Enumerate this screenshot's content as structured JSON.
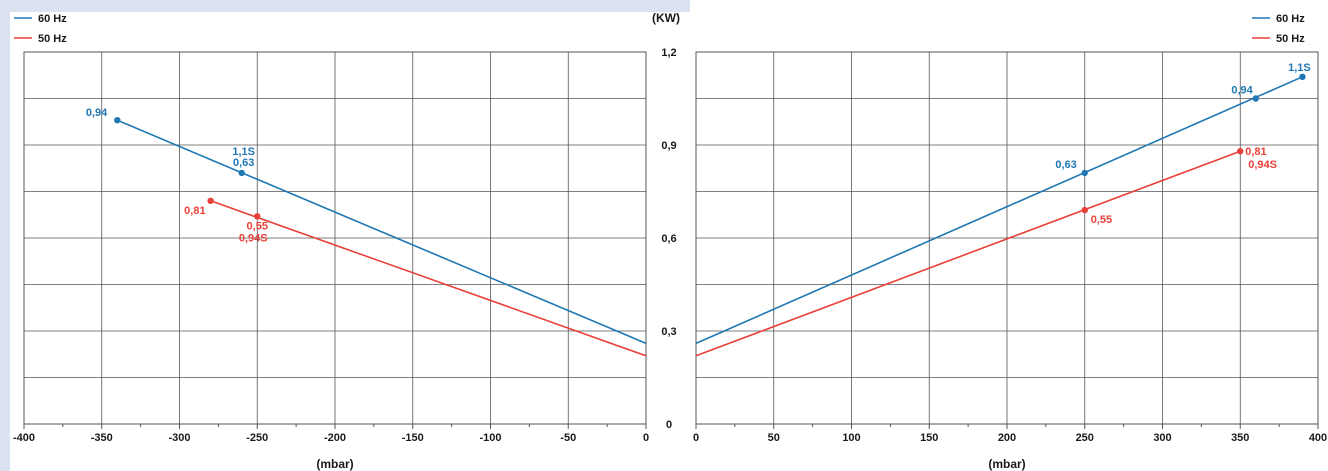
{
  "colors": {
    "series_60hz": "#1f77b4",
    "series_50hz": "#e8413a",
    "grid": "#555555",
    "background": "#dbe3f1"
  },
  "chart_data": [
    {
      "type": "line",
      "title": "",
      "xlabel": "(mbar)",
      "ylabel": "",
      "xlim": [
        -400,
        0
      ],
      "ylim": [
        0,
        1.2
      ],
      "x_ticks": [
        -400,
        -350,
        -300,
        -250,
        -200,
        -150,
        -100,
        -50,
        0
      ],
      "x_tick_labels": [
        "-400",
        "-350",
        "-300",
        "-250",
        "-200",
        "-150",
        "-100",
        "-50",
        "0"
      ],
      "grid": true,
      "legend": {
        "position": "top-left",
        "entries": [
          "60 Hz",
          "50 Hz"
        ]
      },
      "series": [
        {
          "name": "60 Hz",
          "color": "#1f77b4",
          "line": [
            [
              -340,
              0.98
            ],
            [
              0,
              0.26
            ]
          ],
          "points": [
            {
              "x": -340,
              "y": 0.98,
              "labels": [
                "0,94"
              ]
            },
            {
              "x": -260,
              "y": 0.81,
              "labels": [
                "1,1S",
                "0,63"
              ]
            }
          ]
        },
        {
          "name": "50 Hz",
          "color": "#e8413a",
          "line": [
            [
              -280,
              0.72
            ],
            [
              0,
              0.22
            ]
          ],
          "points": [
            {
              "x": -280,
              "y": 0.72,
              "labels": [
                "0,81"
              ]
            },
            {
              "x": -250,
              "y": 0.67,
              "labels": [
                "0,55",
                "0,94S"
              ]
            }
          ]
        }
      ]
    },
    {
      "type": "line",
      "title": "",
      "xlabel": "(mbar)",
      "ylabel": "(KW)",
      "xlim": [
        0,
        400
      ],
      "ylim": [
        0,
        1.2
      ],
      "x_ticks": [
        0,
        50,
        100,
        150,
        200,
        250,
        300,
        350,
        400
      ],
      "x_tick_labels": [
        "0",
        "50",
        "100",
        "150",
        "200",
        "250",
        "300",
        "350",
        "400"
      ],
      "y_ticks": [
        0,
        0.3,
        0.6,
        0.9,
        1.2
      ],
      "y_tick_labels": [
        "0",
        "0,3",
        "0,6",
        "0,9",
        "1,2"
      ],
      "grid": true,
      "legend": {
        "position": "top-right",
        "entries": [
          "60 Hz",
          "50 Hz"
        ]
      },
      "series": [
        {
          "name": "60 Hz",
          "color": "#1f77b4",
          "line": [
            [
              0,
              0.26
            ],
            [
              390,
              1.12
            ]
          ],
          "points": [
            {
              "x": 250,
              "y": 0.81,
              "labels": [
                "0,63"
              ]
            },
            {
              "x": 360,
              "y": 1.05,
              "labels": [
                "0,94"
              ]
            },
            {
              "x": 390,
              "y": 1.12,
              "labels": [
                "1,1S"
              ]
            }
          ]
        },
        {
          "name": "50 Hz",
          "color": "#e8413a",
          "line": [
            [
              0,
              0.22
            ],
            [
              350,
              0.88
            ]
          ],
          "points": [
            {
              "x": 250,
              "y": 0.69,
              "labels": [
                "0,55"
              ]
            },
            {
              "x": 350,
              "y": 0.88,
              "labels": [
                "0,81",
                "0,94S"
              ]
            }
          ]
        }
      ]
    }
  ]
}
